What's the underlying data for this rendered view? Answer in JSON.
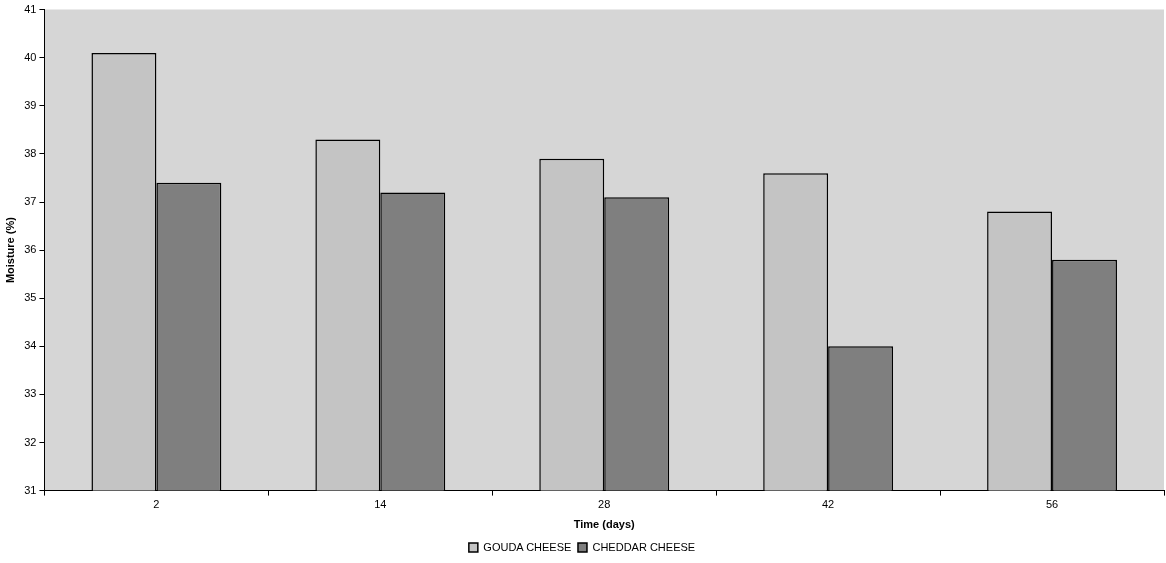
{
  "chart_data": {
    "type": "bar",
    "xlabel": "Time (days)",
    "ylabel": "Moisture (%)",
    "categories": [
      "2",
      "14",
      "28",
      "42",
      "56"
    ],
    "series": [
      {
        "name": "GOUDA CHEESE",
        "color": "#c4c4c4",
        "values": [
          40.1,
          38.3,
          37.9,
          37.6,
          36.8
        ]
      },
      {
        "name": "CHEDDAR CHEESE",
        "color": "#7f7f7f",
        "values": [
          37.4,
          37.2,
          37.1,
          34.0,
          35.8
        ]
      }
    ],
    "ylim": [
      31,
      41
    ],
    "yticks": [
      31,
      32,
      33,
      34,
      35,
      36,
      37,
      38,
      39,
      40,
      41
    ],
    "grid": false,
    "legend": "bottom"
  }
}
